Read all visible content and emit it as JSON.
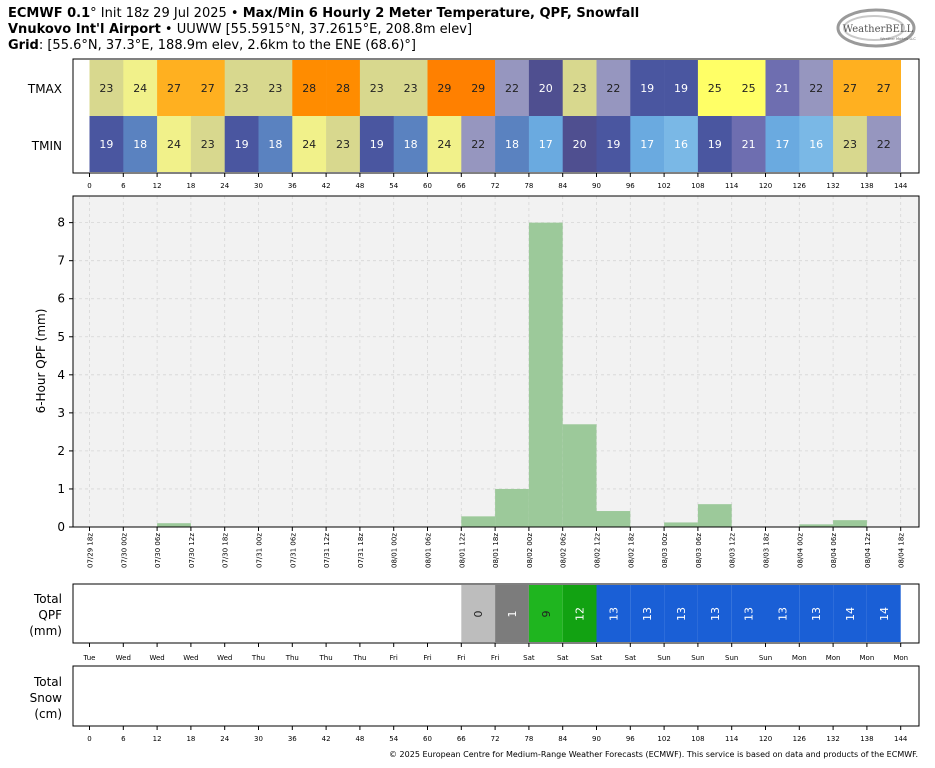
{
  "header": {
    "model": "ECMWF 0.1",
    "init": "° Init 18z 29 Jul 2025",
    "sep": " • ",
    "product": "Max/Min 6 Hourly 2 Meter Temperature,  QPF,  Snowfall",
    "station": "Vnukovo Int'l Airport",
    "station_info": " • UUWW [55.5915°N, 37.2615°E, 208.8m elev]",
    "grid_label": "Grid",
    "grid_info": ": [55.6°N, 37.3°E, 188.9m elev, 2.6km to the ENE (68.6)°]"
  },
  "logo": {
    "text": "WeatherBELL",
    "subtext": "Weather Models LLC"
  },
  "copyright": "© 2025 European Centre for Medium-Range Weather Forecasts (ECMWF). This service is based on data and products of the ECMWF.",
  "chart_data": [
    {
      "type": "heatmap",
      "rows": [
        "TMAX",
        "TMIN"
      ],
      "tmax": [
        23,
        24,
        27,
        27,
        23,
        23,
        28,
        28,
        23,
        23,
        29,
        29,
        22,
        20,
        23,
        22,
        19,
        19,
        25,
        25,
        21,
        22,
        27,
        27
      ],
      "tmin": [
        19,
        18,
        24,
        23,
        19,
        18,
        24,
        23,
        19,
        18,
        24,
        22,
        18,
        17,
        20,
        19,
        17,
        16,
        19,
        21,
        17,
        16,
        23,
        22
      ],
      "hour_ticks": [
        "0",
        "6",
        "12",
        "18",
        "24",
        "30",
        "36",
        "42",
        "48",
        "54",
        "60",
        "66",
        "72",
        "78",
        "84",
        "90",
        "96",
        "102",
        "108",
        "114",
        "120",
        "126",
        "132",
        "138",
        "144"
      ]
    },
    {
      "type": "bar",
      "ylabel": "6-Hour QPF (mm)",
      "ylim": [
        0,
        8.7
      ],
      "yticks": [
        "0",
        "1",
        "2",
        "3",
        "4",
        "5",
        "6",
        "7",
        "8"
      ],
      "grid": true,
      "date_labels": [
        "07/29 18z",
        "07/30 00z",
        "07/30 06z",
        "07/30 12z",
        "07/30 18z",
        "07/31 00z",
        "07/31 06z",
        "07/31 12z",
        "07/31 18z",
        "08/01 00z",
        "08/01 06z",
        "08/01 12z",
        "08/01 18z",
        "08/02 00z",
        "08/02 06z",
        "08/02 12z",
        "08/02 18z",
        "08/03 00z",
        "08/03 06z",
        "08/03 12z",
        "08/03 18z",
        "08/04 00z",
        "08/04 06z",
        "08/04 12z",
        "08/04 18z"
      ],
      "values": [
        0,
        0,
        0.1,
        0,
        0,
        0,
        0,
        0,
        0,
        0,
        0,
        0.28,
        1.0,
        8.0,
        2.7,
        0.42,
        0,
        0.12,
        0.6,
        0,
        0,
        0.07,
        0.18,
        0
      ]
    },
    {
      "type": "table",
      "ylabel": "Total QPF (mm)",
      "cells": [
        {
          "value": "",
          "color": "#ffffff"
        },
        {
          "value": "",
          "color": "#ffffff"
        },
        {
          "value": "",
          "color": "#ffffff"
        },
        {
          "value": "",
          "color": "#ffffff"
        },
        {
          "value": "",
          "color": "#ffffff"
        },
        {
          "value": "",
          "color": "#ffffff"
        },
        {
          "value": "",
          "color": "#ffffff"
        },
        {
          "value": "",
          "color": "#ffffff"
        },
        {
          "value": "",
          "color": "#ffffff"
        },
        {
          "value": "",
          "color": "#ffffff"
        },
        {
          "value": "",
          "color": "#ffffff"
        },
        {
          "value": "0",
          "color": "#bdbdbd"
        },
        {
          "value": "1",
          "color": "#7c7c7c"
        },
        {
          "value": "9",
          "color": "#1fb51f"
        },
        {
          "value": "12",
          "color": "#12a212"
        },
        {
          "value": "13",
          "color": "#1a5fd6"
        },
        {
          "value": "13",
          "color": "#1a5fd6"
        },
        {
          "value": "13",
          "color": "#1a5fd6"
        },
        {
          "value": "13",
          "color": "#1a5fd6"
        },
        {
          "value": "13",
          "color": "#1a5fd6"
        },
        {
          "value": "13",
          "color": "#1a5fd6"
        },
        {
          "value": "13",
          "color": "#1a5fd6"
        },
        {
          "value": "14",
          "color": "#1a5fd6"
        },
        {
          "value": "14",
          "color": "#1a5fd6"
        }
      ],
      "day_labels": [
        "Tue",
        "Wed",
        "Wed",
        "Wed",
        "Wed",
        "Thu",
        "Thu",
        "Thu",
        "Thu",
        "Fri",
        "Fri",
        "Fri",
        "Fri",
        "Sat",
        "Sat",
        "Sat",
        "Sat",
        "Sun",
        "Sun",
        "Sun",
        "Sun",
        "Mon",
        "Mon",
        "Mon",
        "Mon"
      ]
    },
    {
      "type": "table",
      "ylabel": "Total Snow (cm)",
      "values": [],
      "hour_ticks": [
        "0",
        "6",
        "12",
        "18",
        "24",
        "30",
        "36",
        "42",
        "48",
        "54",
        "60",
        "66",
        "72",
        "78",
        "84",
        "90",
        "96",
        "102",
        "108",
        "114",
        "120",
        "126",
        "132",
        "138",
        "144"
      ]
    }
  ]
}
